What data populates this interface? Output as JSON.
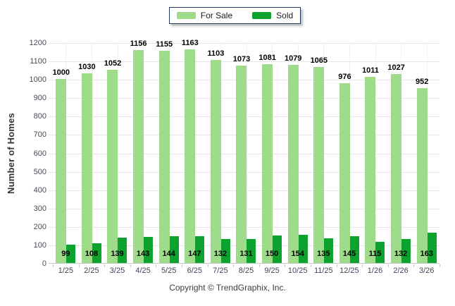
{
  "legend": {
    "items": [
      {
        "label": "For Sale",
        "color": "#9edb8b"
      },
      {
        "label": "Sold",
        "color": "#0ca22d"
      }
    ]
  },
  "footer": {
    "text": "Copyright © TrendGraphix, Inc."
  },
  "colors": {
    "for_sale_bar": "#9edb8b",
    "sold_bar": "#0ca22d",
    "legend_border": "#1f3a60",
    "grid_horizontal": "#e6e6e6",
    "grid_vertical": "#f0f0f0",
    "axis_line": "#c6c6c6",
    "tick_text": "#4a4a55",
    "value_label_text": "#000000"
  },
  "chart_data": {
    "type": "bar",
    "title": "",
    "xlabel": "",
    "ylabel": "Number of Homes",
    "ylim": [
      0,
      1200
    ],
    "ytick_step": 100,
    "grid": true,
    "legend_position": "top-center",
    "value_labels": true,
    "categories": [
      "1/25",
      "2/25",
      "3/25",
      "4/25",
      "5/25",
      "6/25",
      "7/25",
      "8/25",
      "9/25",
      "10/25",
      "11/25",
      "12/25",
      "1/26",
      "2/26",
      "3/26"
    ],
    "series": [
      {
        "name": "For Sale",
        "color": "#9edb8b",
        "values": [
          1000,
          1030,
          1052,
          1156,
          1155,
          1163,
          1103,
          1073,
          1081,
          1079,
          1065,
          976,
          1011,
          1027,
          952
        ]
      },
      {
        "name": "Sold",
        "color": "#0ca22d",
        "values": [
          99,
          108,
          139,
          143,
          144,
          147,
          132,
          131,
          150,
          154,
          135,
          145,
          115,
          132,
          163
        ]
      }
    ]
  }
}
